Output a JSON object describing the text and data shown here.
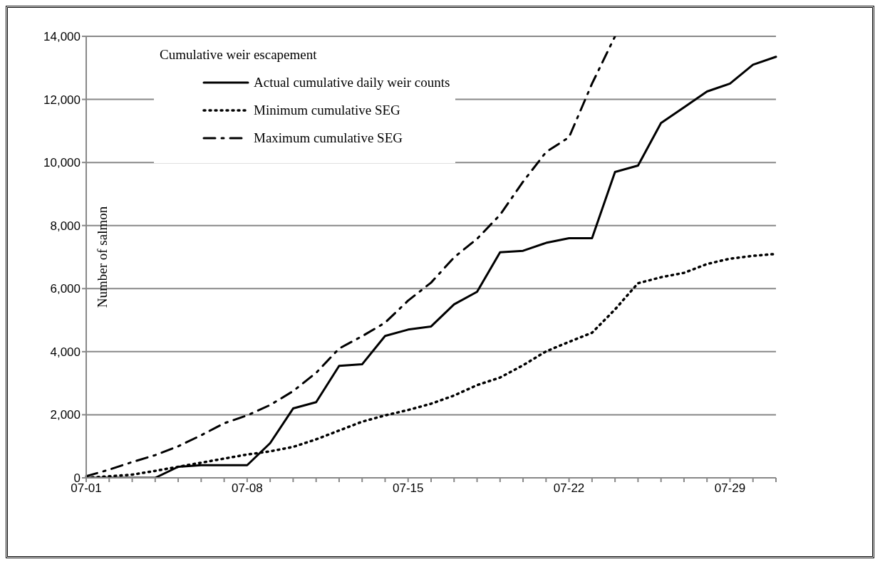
{
  "chart_data": {
    "type": "line",
    "ylabel": "Number of salmon",
    "legend_title": "Cumulative weir escapement",
    "categories": [
      "07-01",
      null,
      null,
      null,
      null,
      null,
      null,
      "07-08",
      null,
      null,
      null,
      null,
      null,
      null,
      "07-15",
      null,
      null,
      null,
      null,
      null,
      null,
      "07-22",
      null,
      null,
      null,
      null,
      null,
      null,
      "07-29",
      null,
      null
    ],
    "series": [
      {
        "name": "Actual cumulative daily weir counts",
        "color": "#000000",
        "line_style": "solid",
        "values": [
          0,
          0,
          0,
          0,
          350,
          400,
          400,
          400,
          1100,
          2200,
          2400,
          3550,
          3600,
          4500,
          4700,
          4800,
          5500,
          5900,
          7150,
          7200,
          7450,
          7600,
          7600,
          9700,
          9900,
          11250,
          11750,
          12250,
          12500,
          13100,
          13350
        ]
      },
      {
        "name": "Minimum cumulative SEG",
        "color": "#000000",
        "line_style": "dotted",
        "values": [
          0,
          50,
          100,
          220,
          350,
          480,
          610,
          740,
          840,
          980,
          1220,
          1500,
          1780,
          1980,
          2150,
          2350,
          2610,
          2940,
          3180,
          3570,
          4010,
          4310,
          4600,
          5340,
          6170,
          6360,
          6500,
          6780,
          6950,
          7040,
          7100
        ]
      },
      {
        "name": "Maximum cumulative SEG",
        "color": "#000000",
        "line_style": "dashed",
        "values": [
          50,
          260,
          500,
          720,
          1000,
          1350,
          1730,
          1980,
          2310,
          2750,
          3330,
          4100,
          4490,
          4920,
          5620,
          6190,
          6990,
          7580,
          8340,
          9390,
          10330,
          10800,
          12500,
          14000,
          null,
          null,
          null,
          null,
          null,
          null,
          null
        ]
      }
    ],
    "ylim": [
      0,
      14000
    ],
    "yticks": [
      {
        "value": 0,
        "label": "0"
      },
      {
        "value": 2000,
        "label": "2,000"
      },
      {
        "value": 4000,
        "label": "4,000"
      },
      {
        "value": 6000,
        "label": "6,000"
      },
      {
        "value": 8000,
        "label": "8,000"
      },
      {
        "value": 10000,
        "label": "10,000"
      },
      {
        "value": 12000,
        "label": "12,000"
      },
      {
        "value": 14000,
        "label": "14,000"
      }
    ],
    "grid": "y",
    "legend": "top left",
    "marker": "none"
  }
}
